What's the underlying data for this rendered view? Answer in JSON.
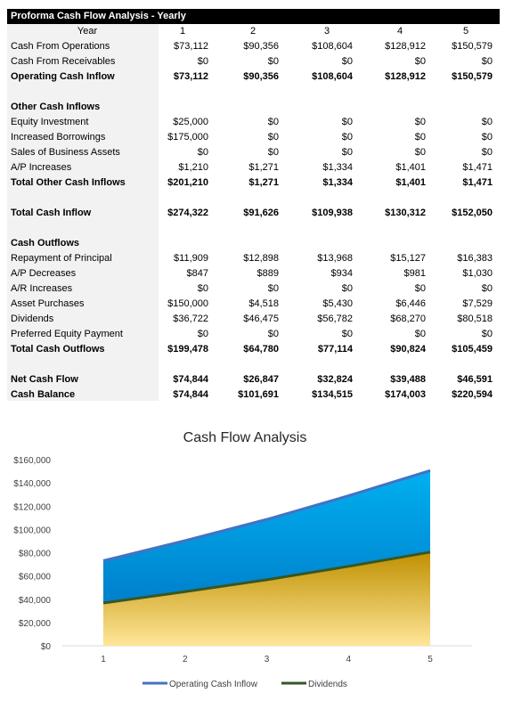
{
  "sheet": {
    "title": "Proforma Cash Flow Analysis - Yearly",
    "header": {
      "label": "Year",
      "cols": [
        "1",
        "2",
        "3",
        "4",
        "5"
      ]
    },
    "rows": [
      {
        "label": "Cash From Operations",
        "values": [
          "$73,112",
          "$90,356",
          "$108,604",
          "$128,912",
          "$150,579"
        ],
        "bold": false
      },
      {
        "label": "Cash From Receivables",
        "values": [
          "$0",
          "$0",
          "$0",
          "$0",
          "$0"
        ],
        "bold": false
      },
      {
        "label": "Operating Cash Inflow",
        "values": [
          "$73,112",
          "$90,356",
          "$108,604",
          "$128,912",
          "$150,579"
        ],
        "bold": true
      },
      {
        "label": "",
        "values": [
          "",
          "",
          "",
          "",
          ""
        ],
        "bold": false
      },
      {
        "label": "Other Cash Inflows",
        "values": [
          "",
          "",
          "",
          "",
          ""
        ],
        "bold": true
      },
      {
        "label": "Equity Investment",
        "values": [
          "$25,000",
          "$0",
          "$0",
          "$0",
          "$0"
        ],
        "bold": false
      },
      {
        "label": "Increased Borrowings",
        "values": [
          "$175,000",
          "$0",
          "$0",
          "$0",
          "$0"
        ],
        "bold": false
      },
      {
        "label": "Sales of Business Assets",
        "values": [
          "$0",
          "$0",
          "$0",
          "$0",
          "$0"
        ],
        "bold": false
      },
      {
        "label": "A/P Increases",
        "values": [
          "$1,210",
          "$1,271",
          "$1,334",
          "$1,401",
          "$1,471"
        ],
        "bold": false
      },
      {
        "label": "Total Other Cash Inflows",
        "values": [
          "$201,210",
          "$1,271",
          "$1,334",
          "$1,401",
          "$1,471"
        ],
        "bold": true
      },
      {
        "label": "",
        "values": [
          "",
          "",
          "",
          "",
          ""
        ],
        "bold": false
      },
      {
        "label": "Total Cash Inflow",
        "values": [
          "$274,322",
          "$91,626",
          "$109,938",
          "$130,312",
          "$152,050"
        ],
        "bold": true
      },
      {
        "label": "",
        "values": [
          "",
          "",
          "",
          "",
          ""
        ],
        "bold": false
      },
      {
        "label": "Cash Outflows",
        "values": [
          "",
          "",
          "",
          "",
          ""
        ],
        "bold": true
      },
      {
        "label": "Repayment of Principal",
        "values": [
          "$11,909",
          "$12,898",
          "$13,968",
          "$15,127",
          "$16,383"
        ],
        "bold": false
      },
      {
        "label": "A/P Decreases",
        "values": [
          "$847",
          "$889",
          "$934",
          "$981",
          "$1,030"
        ],
        "bold": false
      },
      {
        "label": "A/R Increases",
        "values": [
          "$0",
          "$0",
          "$0",
          "$0",
          "$0"
        ],
        "bold": false
      },
      {
        "label": "Asset Purchases",
        "values": [
          "$150,000",
          "$4,518",
          "$5,430",
          "$6,446",
          "$7,529"
        ],
        "bold": false
      },
      {
        "label": "Dividends",
        "values": [
          "$36,722",
          "$46,475",
          "$56,782",
          "$68,270",
          "$80,518"
        ],
        "bold": false
      },
      {
        "label": "Preferred Equity Payment",
        "values": [
          "$0",
          "$0",
          "$0",
          "$0",
          "$0"
        ],
        "bold": false
      },
      {
        "label": "Total Cash Outflows",
        "values": [
          "$199,478",
          "$64,780",
          "$77,114",
          "$90,824",
          "$105,459"
        ],
        "bold": true
      },
      {
        "label": "",
        "values": [
          "",
          "",
          "",
          "",
          ""
        ],
        "bold": false
      },
      {
        "label": "Net Cash Flow",
        "values": [
          "$74,844",
          "$26,847",
          "$32,824",
          "$39,488",
          "$46,591"
        ],
        "bold": true
      },
      {
        "label": "Cash Balance",
        "values": [
          "$74,844",
          "$101,691",
          "$134,515",
          "$174,003",
          "$220,594"
        ],
        "bold": true
      }
    ]
  },
  "chart_data": {
    "type": "area",
    "title": "Cash Flow Analysis",
    "xlabel": "",
    "ylabel": "",
    "categories": [
      "1",
      "2",
      "3",
      "4",
      "5"
    ],
    "ylim": [
      0,
      160000
    ],
    "yticks": [
      "$0",
      "$20,000",
      "$40,000",
      "$60,000",
      "$80,000",
      "$100,000",
      "$120,000",
      "$140,000",
      "$160,000"
    ],
    "series": [
      {
        "name": "Operating Cash Inflow",
        "values": [
          73112,
          90356,
          108604,
          128912,
          150579
        ],
        "line_color": "#4472c4",
        "fill_top": "#00b0f0",
        "fill_bottom": "#0070c0"
      },
      {
        "name": "Dividends",
        "values": [
          36722,
          46475,
          56782,
          68270,
          80518
        ],
        "line_color": "#375623",
        "fill_top": "#bf9000",
        "fill_bottom": "#ffe699"
      }
    ],
    "grid": false,
    "legend": "bottom"
  }
}
